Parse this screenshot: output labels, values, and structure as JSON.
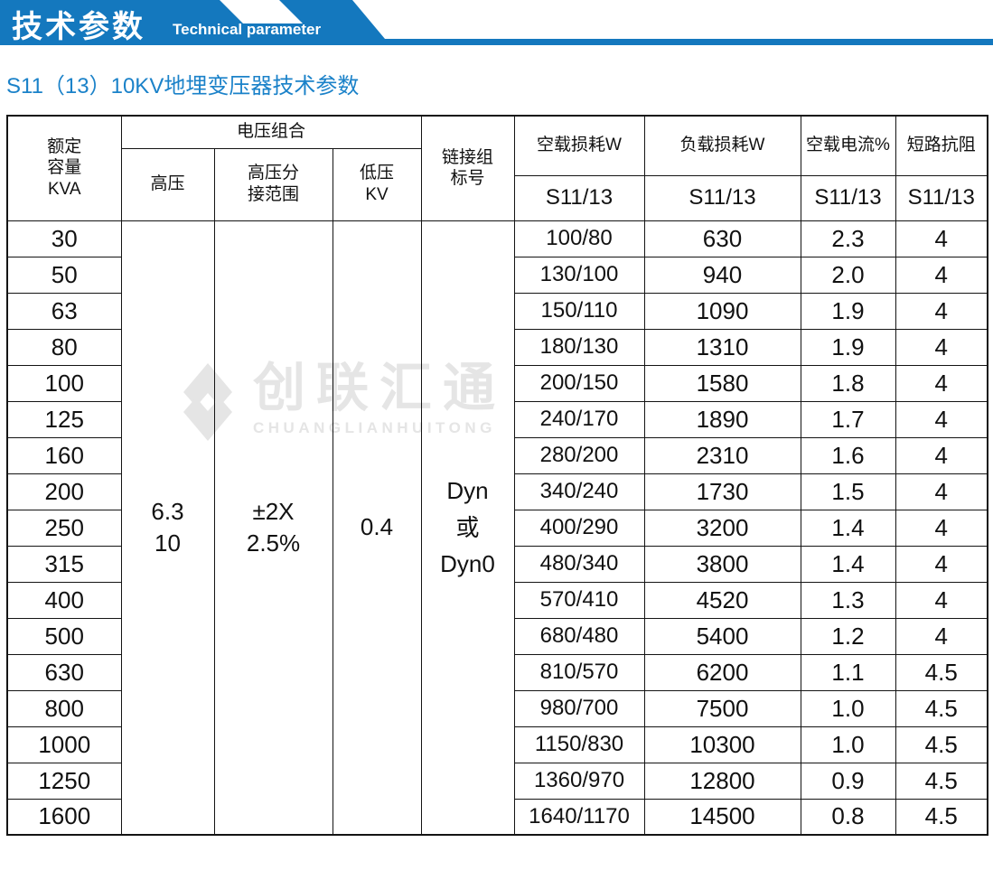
{
  "banner": {
    "title": "技术参数",
    "subtitle": "Technical parameter"
  },
  "section": {
    "title": "S11（13）10KV地埋变压器技术参数"
  },
  "watermark": {
    "cn": "创联汇通",
    "en": "CHUANGLIANHUITONG"
  },
  "colors": {
    "banner_blue": "#1478be",
    "subtitle_blue": "#1b82c9",
    "table_header_bg": "#c9e7f8",
    "watermark_gray": "#e5e5e5"
  },
  "table": {
    "headers": {
      "capacity": "额定\n容量\nKVA",
      "voltage_group": "电压组合",
      "hv": "高压",
      "hv_tap": "高压分\n接范围",
      "lv": "低压\nKV",
      "vector": "链接组\n标号",
      "no_load_loss": "空载损耗W",
      "load_loss": "负载损耗W",
      "no_load_current": "空载电流%",
      "impedance": "短路抗阻",
      "sub": "S11/13"
    },
    "merged": {
      "hv_value": "6.3\n10",
      "tap_value": "±2X\n2.5%",
      "lv_value": "0.4",
      "vector_value": "Dyn\n或\nDyn0"
    },
    "rows": [
      {
        "kva": "30",
        "no_load_loss": "100/80",
        "load_loss": "630",
        "current": "2.3",
        "impedance": "4"
      },
      {
        "kva": "50",
        "no_load_loss": "130/100",
        "load_loss": "940",
        "current": "2.0",
        "impedance": "4"
      },
      {
        "kva": "63",
        "no_load_loss": "150/110",
        "load_loss": "1090",
        "current": "1.9",
        "impedance": "4"
      },
      {
        "kva": "80",
        "no_load_loss": "180/130",
        "load_loss": "1310",
        "current": "1.9",
        "impedance": "4"
      },
      {
        "kva": "100",
        "no_load_loss": "200/150",
        "load_loss": "1580",
        "current": "1.8",
        "impedance": "4"
      },
      {
        "kva": "125",
        "no_load_loss": "240/170",
        "load_loss": "1890",
        "current": "1.7",
        "impedance": "4"
      },
      {
        "kva": "160",
        "no_load_loss": "280/200",
        "load_loss": "2310",
        "current": "1.6",
        "impedance": "4"
      },
      {
        "kva": "200",
        "no_load_loss": "340/240",
        "load_loss": "1730",
        "current": "1.5",
        "impedance": "4"
      },
      {
        "kva": "250",
        "no_load_loss": "400/290",
        "load_loss": "3200",
        "current": "1.4",
        "impedance": "4"
      },
      {
        "kva": "315",
        "no_load_loss": "480/340",
        "load_loss": "3800",
        "current": "1.4",
        "impedance": "4"
      },
      {
        "kva": "400",
        "no_load_loss": "570/410",
        "load_loss": "4520",
        "current": "1.3",
        "impedance": "4"
      },
      {
        "kva": "500",
        "no_load_loss": "680/480",
        "load_loss": "5400",
        "current": "1.2",
        "impedance": "4"
      },
      {
        "kva": "630",
        "no_load_loss": "810/570",
        "load_loss": "6200",
        "current": "1.1",
        "impedance": "4.5"
      },
      {
        "kva": "800",
        "no_load_loss": "980/700",
        "load_loss": "7500",
        "current": "1.0",
        "impedance": "4.5"
      },
      {
        "kva": "1000",
        "no_load_loss": "1150/830",
        "load_loss": "10300",
        "current": "1.0",
        "impedance": "4.5"
      },
      {
        "kva": "1250",
        "no_load_loss": "1360/970",
        "load_loss": "12800",
        "current": "0.9",
        "impedance": "4.5"
      },
      {
        "kva": "1600",
        "no_load_loss": "1640/1170",
        "load_loss": "14500",
        "current": "0.8",
        "impedance": "4.5"
      }
    ]
  }
}
